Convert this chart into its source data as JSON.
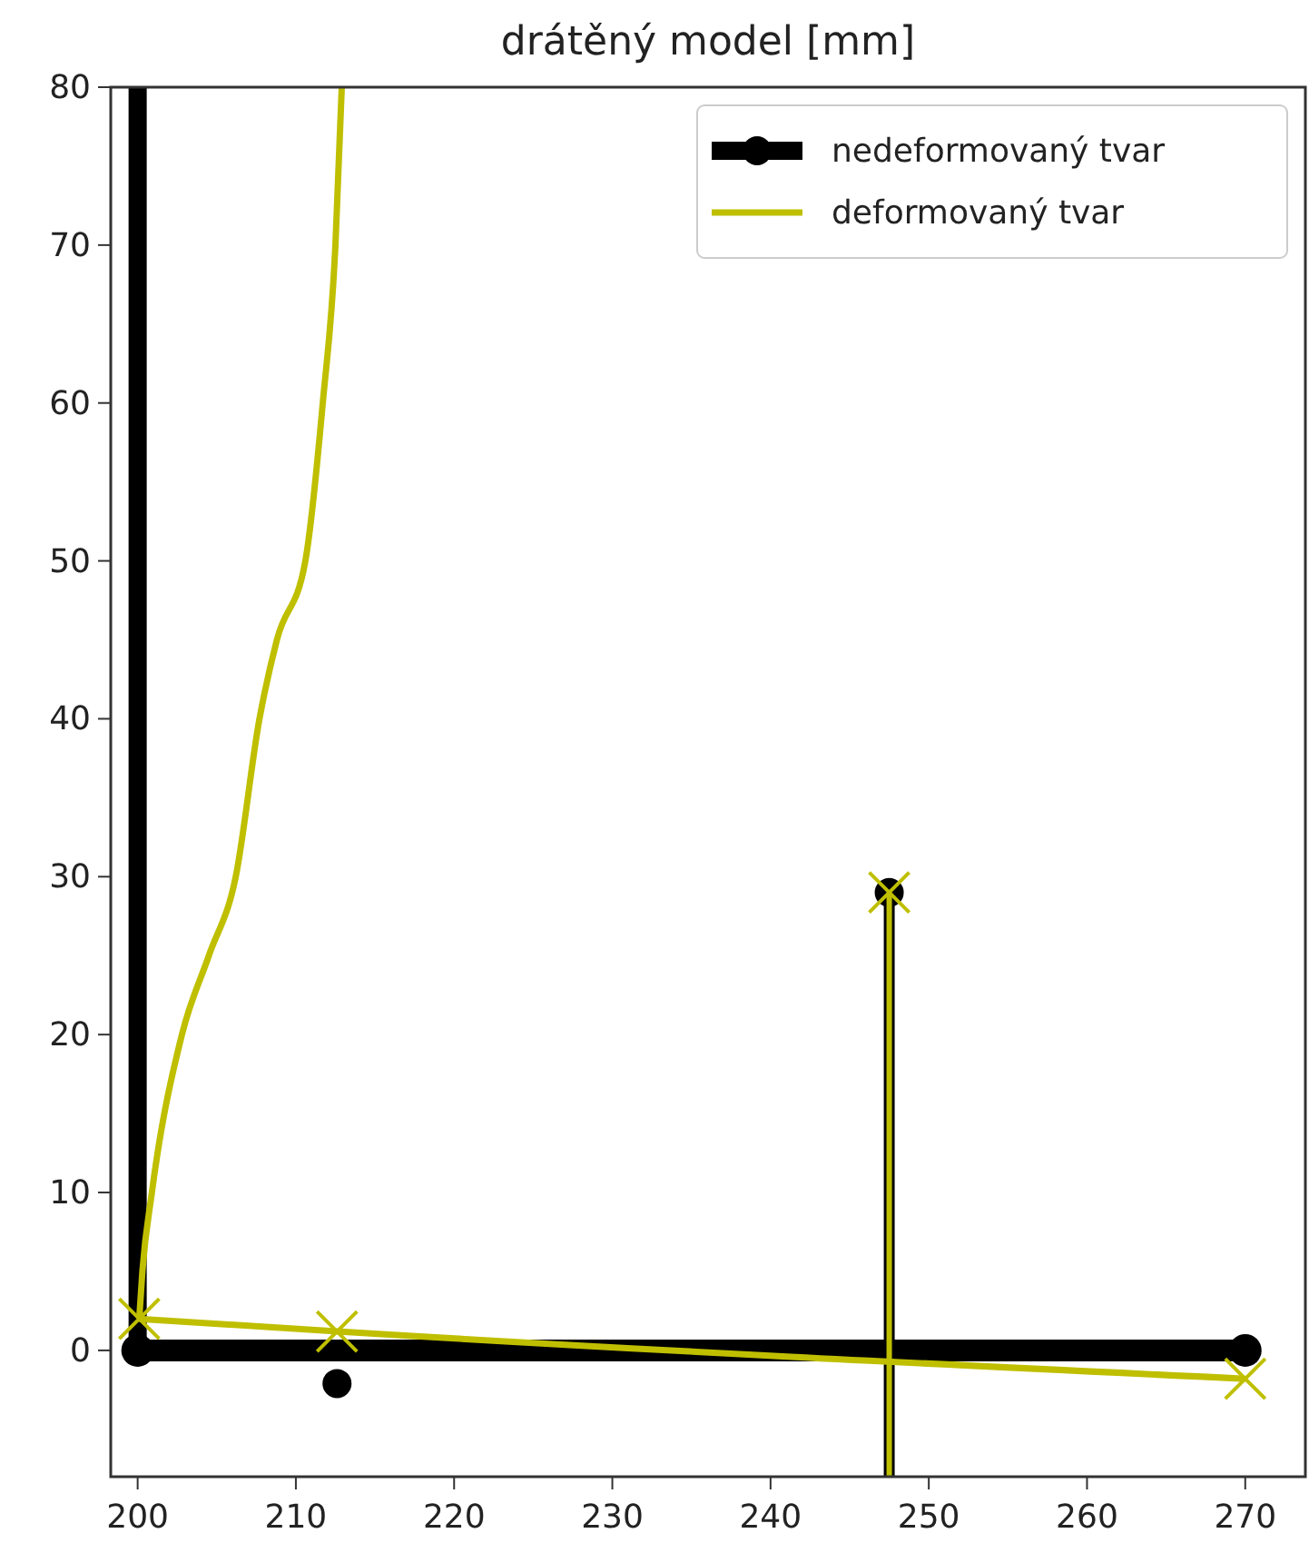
{
  "chart_data": {
    "type": "line",
    "title": "drátěný model [mm]",
    "xlim": [
      198.3,
      273.8
    ],
    "ylim": [
      -8,
      80
    ],
    "xticks": [
      200,
      210,
      220,
      230,
      240,
      250,
      260,
      270
    ],
    "yticks": [
      0,
      10,
      20,
      30,
      40,
      50,
      60,
      70,
      80
    ],
    "grid": false,
    "legend": "top right",
    "series": [
      {
        "name": "nedeformovaný tvar",
        "color": "#000000",
        "x": [
          200,
          270
        ],
        "values": [
          0,
          0
        ],
        "marker": "circle"
      },
      {
        "color": "#000000",
        "x": [
          200,
          200
        ],
        "values": [
          80,
          0
        ],
        "marker": "none"
      },
      {
        "color": "#000000",
        "x": [
          247.5,
          247.5
        ],
        "values": [
          -8,
          29
        ],
        "marker": "circle"
      },
      {
        "type": "scatter",
        "color": "#000000",
        "x": [
          212.6
        ],
        "values": [
          -2.1
        ],
        "marker": "circle"
      },
      {
        "name": "deformovaný tvar",
        "color": "#bfbf00",
        "x": [
          200.1,
          200.3,
          200.9,
          202.8,
          204.5,
          206.2,
          207.7,
          208.8,
          210.6,
          211.7,
          212.5,
          212.9
        ],
        "values": [
          2,
          5,
          10,
          20,
          25,
          30,
          40,
          45,
          50,
          60,
          70,
          80
        ],
        "marker": "none"
      },
      {
        "color": "#bfbf00",
        "x": [
          200.1,
          212.6,
          270
        ],
        "values": [
          2,
          1.2,
          -1.8
        ],
        "marker": "cross"
      },
      {
        "color": "#bfbf00",
        "x": [
          247.5,
          247.5
        ],
        "values": [
          -8,
          29
        ],
        "marker": "cross"
      }
    ]
  }
}
